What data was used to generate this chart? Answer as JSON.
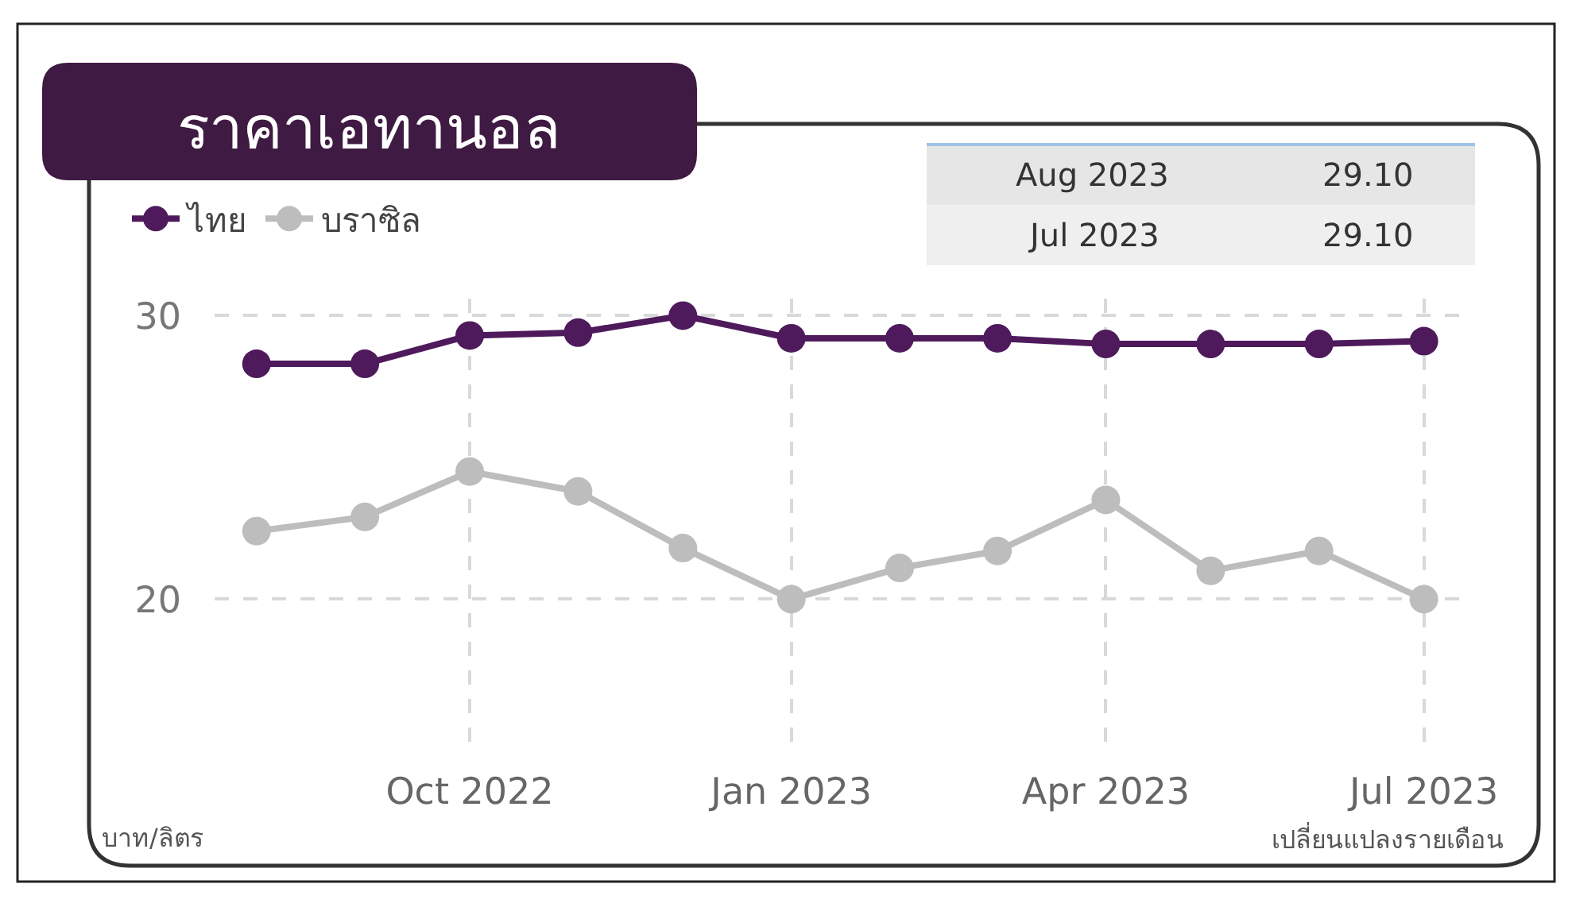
{
  "chart_data": {
    "type": "line",
    "title": "ราคาเอทานอล",
    "x": [
      "2022-08",
      "2022-09",
      "2022-10",
      "2022-11",
      "2022-12",
      "2023-01",
      "2023-02",
      "2023-03",
      "2023-04",
      "2023-05",
      "2023-06",
      "2023-07"
    ],
    "series": [
      {
        "name": "ไทย",
        "color": "#4e1a5c",
        "values": [
          28.3,
          28.3,
          29.3,
          29.4,
          30.0,
          29.2,
          29.2,
          29.2,
          29.0,
          29.0,
          29.0,
          29.1
        ]
      },
      {
        "name": "บราซิล",
        "color": "#bdbdbd",
        "values": [
          22.4,
          22.9,
          24.5,
          23.8,
          21.8,
          20.0,
          21.1,
          21.7,
          23.5,
          21.0,
          21.7,
          20.0
        ]
      }
    ],
    "xlim": [
      "2022-07-20",
      "2023-07-12"
    ],
    "xticks": [
      {
        "value": "2022-10",
        "label": "Oct 2022"
      },
      {
        "value": "2023-01",
        "label": "Jan 2023"
      },
      {
        "value": "2023-04",
        "label": "Apr 2023"
      },
      {
        "value": "2023-07",
        "label": "Jul 2023"
      }
    ],
    "ylim": [
      14.8,
      30.6
    ],
    "yticks": [
      20,
      30
    ],
    "grid": true,
    "legend": "top left",
    "marker": "circle",
    "line_style": "solid",
    "annotations": [
      "Aug 2023",
      "29.10",
      "Jul 2023",
      "29.10",
      "บาท/ลิตร",
      "เปลี่ยนแปลงรายเดือน"
    ]
  }
}
